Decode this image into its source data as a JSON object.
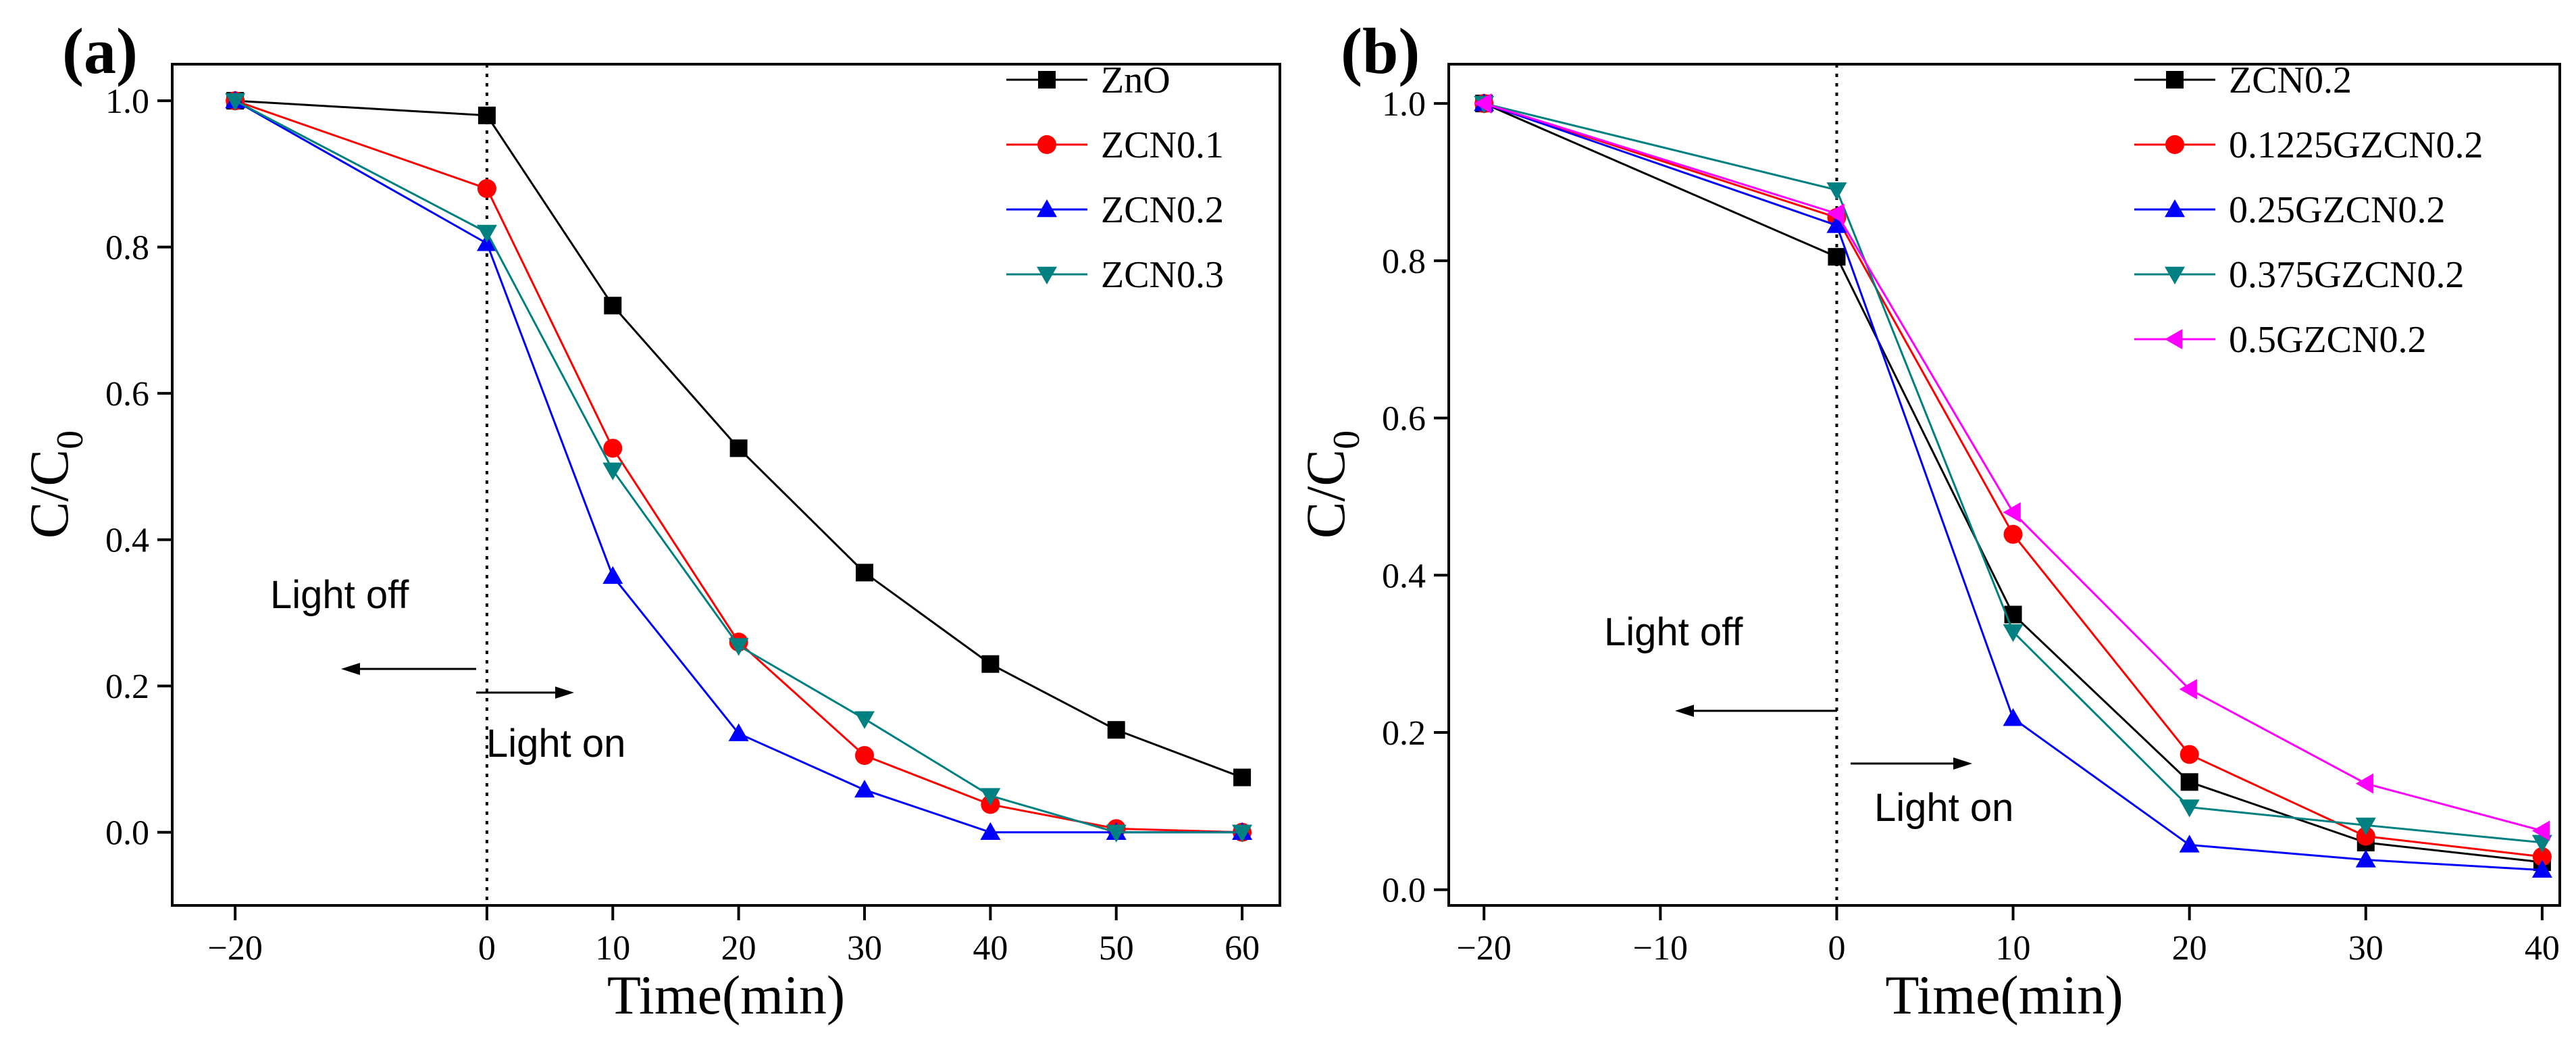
{
  "panels": [
    {
      "panel_label": "(a)",
      "annotation_off": "Light off",
      "annotation_on": "Light on"
    },
    {
      "panel_label": "(b)",
      "annotation_off": "Light off",
      "annotation_on": "Light on"
    }
  ],
  "chart_data": [
    {
      "type": "line",
      "title": "",
      "xlabel": "Time(min)",
      "ylabel": "C/C0",
      "ylabel_main": "C/C",
      "ylabel_sub": "0",
      "xlim": [
        -25,
        63
      ],
      "ylim": [
        -0.1,
        1.05
      ],
      "xticks": [
        -20,
        0,
        10,
        20,
        30,
        40,
        50,
        60
      ],
      "xtick_labels": [
        "−20",
        "0",
        "10",
        "20",
        "30",
        "40",
        "50",
        "60"
      ],
      "yticks": [
        0.0,
        0.2,
        0.4,
        0.6,
        0.8,
        1.0
      ],
      "ytick_labels": [
        "0.0",
        "0.2",
        "0.4",
        "0.6",
        "0.8",
        "1.0"
      ],
      "x": [
        -20,
        0,
        10,
        20,
        30,
        40,
        50,
        60
      ],
      "light_on_x": 0,
      "legend_position": "top-right",
      "series": [
        {
          "name": "ZnO",
          "color": "#000000",
          "marker": "square",
          "values": [
            1.0,
            0.98,
            0.72,
            0.525,
            0.355,
            0.23,
            0.14,
            0.075
          ]
        },
        {
          "name": "ZCN0.1",
          "color": "#ff0000",
          "marker": "circle",
          "values": [
            1.0,
            0.88,
            0.525,
            0.26,
            0.105,
            0.038,
            0.005,
            0.0
          ]
        },
        {
          "name": "ZCN0.2",
          "color": "#0000ff",
          "marker": "triangle-up",
          "values": [
            1.0,
            0.805,
            0.35,
            0.135,
            0.058,
            0.0,
            0.0,
            0.0
          ]
        },
        {
          "name": "ZCN0.3",
          "color": "#008080",
          "marker": "triangle-down",
          "values": [
            1.0,
            0.82,
            0.495,
            0.255,
            0.155,
            0.05,
            0.0,
            0.0
          ]
        }
      ]
    },
    {
      "type": "line",
      "title": "",
      "xlabel": "Time(min)",
      "ylabel": "C/C0",
      "ylabel_main": "C/C",
      "ylabel_sub": "0",
      "xlim": [
        -22,
        41
      ],
      "ylim": [
        -0.02,
        1.05
      ],
      "xticks": [
        -20,
        -10,
        0,
        10,
        20,
        30,
        40
      ],
      "xtick_labels": [
        "−20",
        "−10",
        "0",
        "10",
        "20",
        "30",
        "40"
      ],
      "yticks": [
        0.0,
        0.2,
        0.4,
        0.6,
        0.8,
        1.0
      ],
      "ytick_labels": [
        "0.0",
        "0.2",
        "0.4",
        "0.6",
        "0.8",
        "1.0"
      ],
      "x": [
        -20,
        0,
        10,
        20,
        30,
        40
      ],
      "light_on_x": 0,
      "legend_position": "top-right",
      "series": [
        {
          "name": "ZCN0.2",
          "color": "#000000",
          "marker": "square",
          "values": [
            1.0,
            0.805,
            0.35,
            0.137,
            0.06,
            0.035
          ]
        },
        {
          "name": "0.1225GZCN0.2",
          "color": "#ff0000",
          "marker": "circle",
          "values": [
            1.0,
            0.855,
            0.452,
            0.172,
            0.068,
            0.042
          ]
        },
        {
          "name": "0.25GZCN0.2",
          "color": "#0000ff",
          "marker": "triangle-up",
          "values": [
            1.0,
            0.845,
            0.218,
            0.057,
            0.038,
            0.025
          ]
        },
        {
          "name": "0.375GZCN0.2",
          "color": "#008080",
          "marker": "triangle-down",
          "values": [
            1.0,
            0.89,
            0.328,
            0.105,
            0.082,
            0.06
          ]
        },
        {
          "name": "0.5GZCN0.2",
          "color": "#ff00ff",
          "marker": "triangle-left",
          "values": [
            1.0,
            0.86,
            0.48,
            0.255,
            0.135,
            0.075
          ]
        }
      ]
    }
  ]
}
